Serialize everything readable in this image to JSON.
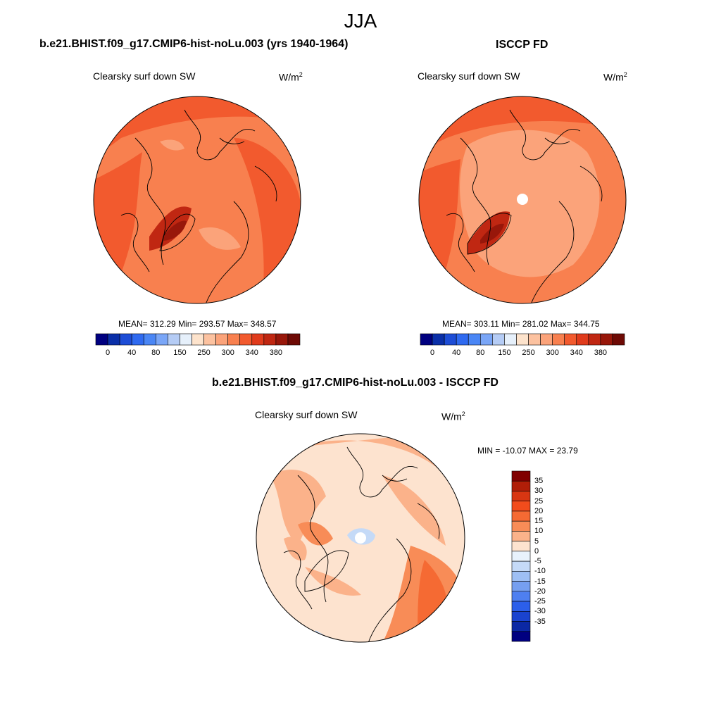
{
  "season": "JJA",
  "panels": [
    {
      "title": "b.e21.BHIST.f09_g17.CMIP6-hist-noLu.003 (yrs 1940-1964)",
      "variable": "Clearsky surf down SW",
      "units": "W/m",
      "units_sup": "2",
      "stats": "MEAN= 312.29  Min= 293.57  Max= 348.57"
    },
    {
      "title": "ISCCP FD",
      "variable": "Clearsky surf down SW",
      "units": "W/m",
      "units_sup": "2",
      "stats": "MEAN= 303.11  Min= 281.02  Max= 344.75"
    },
    {
      "title": "b.e21.BHIST.f09_g17.CMIP6-hist-noLu.003 - ISCCP FD",
      "variable": "Clearsky surf down SW",
      "units": "W/m",
      "units_sup": "2",
      "stats": "MIN = -10.07 MAX =  23.79"
    }
  ],
  "colorbar_abs": {
    "colors": [
      "#000080",
      "#0a2fa8",
      "#1d4dd6",
      "#2f6af0",
      "#4a86f5",
      "#7aa6f7",
      "#b5ccf5",
      "#e6f0fb",
      "#fde3cc",
      "#fcc2a0",
      "#fba37a",
      "#f8804f",
      "#f25a2e",
      "#e03b1c",
      "#c02712",
      "#98170a",
      "#6e0a05"
    ],
    "labels": [
      "0",
      "40",
      "80",
      "150",
      "250",
      "300",
      "340",
      "380"
    ]
  },
  "colorbar_diff": {
    "colors": [
      "#800000",
      "#b01e08",
      "#d83612",
      "#f24c1c",
      "#f56a33",
      "#f88c57",
      "#fbb28a",
      "#fde3cf",
      "#e8f2fc",
      "#c5daf7",
      "#9ebff4",
      "#769ff0",
      "#4e7ff0",
      "#2c5fea",
      "#1a43cf",
      "#0b28a4",
      "#000080"
    ],
    "labels": [
      "35",
      "30",
      "25",
      "20",
      "15",
      "10",
      "5",
      "0",
      "-5",
      "-10",
      "-15",
      "-20",
      "-25",
      "-30",
      "-35"
    ]
  },
  "map_colors": {
    "c300": "#f8804f",
    "c340": "#f25a2e",
    "c380": "#c02712",
    "c250": "#fba37a",
    "d0": "#fde3cf",
    "d5": "#fbb28a",
    "d10": "#f88c57",
    "d15": "#f56a33",
    "dneg": "#c5daf7"
  }
}
